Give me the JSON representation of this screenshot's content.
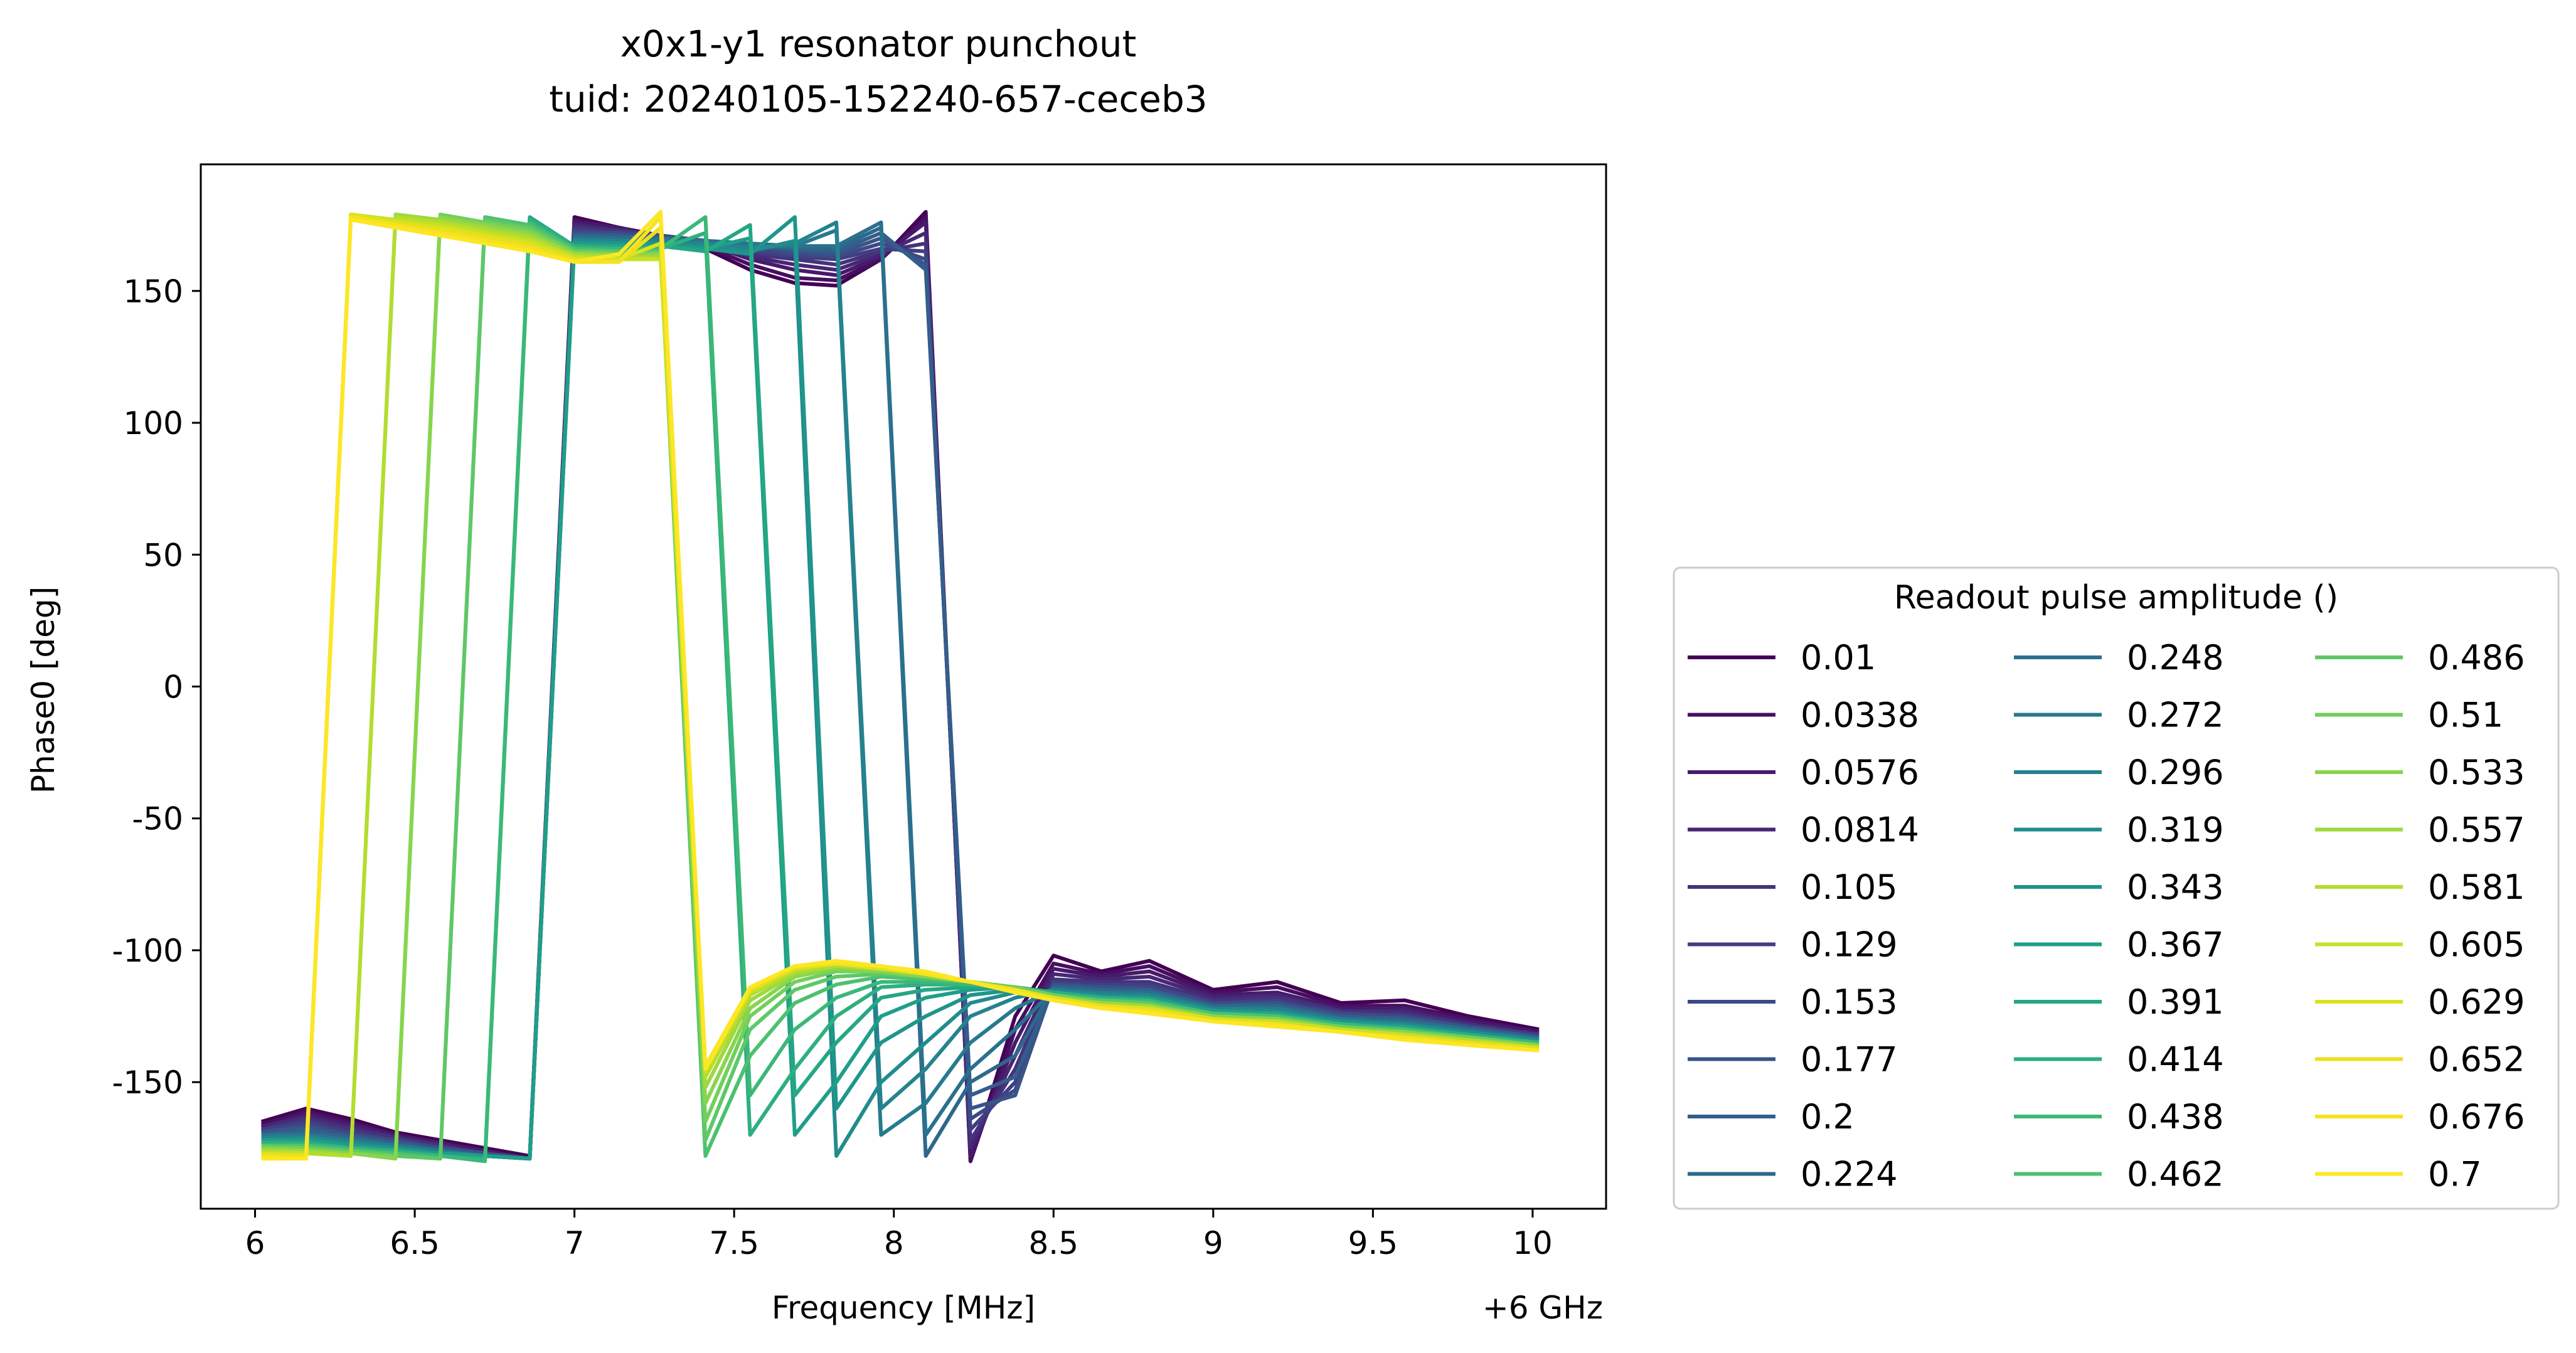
{
  "chart_data": {
    "type": "line",
    "title": "x0x1-y1 resonator punchout",
    "subtitle": "tuid: 20240105-152240-657-ceceb3",
    "xlabel": "Frequency [MHz]",
    "x_offset_label": "+6 GHz",
    "ylabel": "Phase0 [deg]",
    "xlim": [
      5.83,
      10.23
    ],
    "ylim": [
      -198,
      198
    ],
    "xticks": [
      6,
      6.5,
      7,
      7.5,
      8,
      8.5,
      9,
      9.5,
      10
    ],
    "xtick_labels": [
      "6",
      "6.5",
      "7",
      "7.5",
      "8",
      "8.5",
      "9",
      "9.5",
      "10"
    ],
    "yticks": [
      150,
      100,
      50,
      0,
      -50,
      -100,
      -150
    ],
    "ytick_labels": [
      "150",
      "100",
      "50",
      "0",
      "-50",
      "-100",
      "-150"
    ],
    "grid": false,
    "legend": {
      "title": "Readout pulse amplitude ()",
      "placement": "lower-right-outside",
      "columns": 3
    },
    "x": [
      6.02,
      6.16,
      6.3,
      6.44,
      6.58,
      6.72,
      6.86,
      7.0,
      7.14,
      7.27,
      7.41,
      7.55,
      7.69,
      7.82,
      7.96,
      8.1,
      8.24,
      8.38,
      8.5,
      8.65,
      8.8,
      9.0,
      9.2,
      9.4,
      9.6,
      9.8,
      10.02
    ],
    "series": [
      {
        "name": "0.01",
        "color": "#440154",
        "values": [
          -165,
          -160,
          -164,
          -169,
          -172,
          -175,
          -178,
          178,
          174,
          170,
          166,
          158,
          153,
          152,
          162,
          180,
          -180,
          -125,
          -102,
          -108,
          -104,
          -115,
          -112,
          -120,
          -119,
          -125,
          -130
        ]
      },
      {
        "name": "0.0338",
        "color": "#470e61",
        "values": [
          -166,
          -161,
          -165,
          -170,
          -173,
          -176,
          -179,
          177,
          174,
          171,
          167,
          160,
          155,
          154,
          162,
          178,
          -180,
          -130,
          -105,
          -109,
          -106,
          -116,
          -114,
          -121,
          -121,
          -126,
          -131
        ]
      },
      {
        "name": "0.0576",
        "color": "#471a6c",
        "values": [
          -167,
          -162,
          -166,
          -170,
          -173,
          -176,
          -179,
          176,
          174,
          171,
          168,
          162,
          158,
          156,
          163,
          176,
          -178,
          -135,
          -107,
          -110,
          -108,
          -117,
          -116,
          -122,
          -122,
          -127,
          -131
        ]
      },
      {
        "name": "0.0814",
        "color": "#472775",
        "values": [
          -167,
          -163,
          -167,
          -171,
          -174,
          -177,
          -179,
          175,
          173,
          171,
          168,
          163,
          160,
          158,
          164,
          172,
          -175,
          -140,
          -109,
          -111,
          -110,
          -118,
          -117,
          -123,
          -123,
          -128,
          -132
        ]
      },
      {
        "name": "0.105",
        "color": "#44337c",
        "values": [
          -168,
          -164,
          -168,
          -171,
          -174,
          -177,
          -179,
          174,
          173,
          171,
          169,
          164,
          162,
          160,
          165,
          168,
          -172,
          -145,
          -111,
          -112,
          -112,
          -119,
          -118,
          -123,
          -124,
          -128,
          -132
        ]
      },
      {
        "name": "0.129",
        "color": "#413e82",
        "values": [
          -168,
          -165,
          -169,
          -172,
          -175,
          -177,
          -179,
          173,
          172,
          171,
          169,
          165,
          163,
          162,
          166,
          165,
          -168,
          -150,
          -112,
          -113,
          -113,
          -120,
          -119,
          -124,
          -125,
          -129,
          -132
        ]
      },
      {
        "name": "0.153",
        "color": "#3d4986",
        "values": [
          -169,
          -166,
          -170,
          -172,
          -175,
          -177,
          -179,
          172,
          172,
          171,
          169,
          166,
          164,
          163,
          168,
          162,
          -164,
          -153,
          -113,
          -114,
          -114,
          -120,
          -120,
          -124,
          -125,
          -129,
          -133
        ]
      },
      {
        "name": "0.177",
        "color": "#385489",
        "values": [
          -169,
          -167,
          -170,
          -173,
          -175,
          -177,
          -179,
          172,
          171,
          170,
          169,
          167,
          165,
          164,
          170,
          160,
          -160,
          -155,
          -113,
          -114,
          -115,
          -121,
          -120,
          -125,
          -126,
          -129,
          -133
        ]
      },
      {
        "name": "0.2",
        "color": "#335e8b",
        "values": [
          -170,
          -168,
          -171,
          -173,
          -176,
          -178,
          -179,
          171,
          171,
          170,
          169,
          167,
          166,
          165,
          172,
          158,
          -155,
          -148,
          -114,
          -115,
          -115,
          -121,
          -121,
          -125,
          -126,
          -130,
          -133
        ]
      },
      {
        "name": "0.224",
        "color": "#2e678c",
        "values": [
          -170,
          -169,
          -171,
          -174,
          -176,
          -178,
          -179,
          171,
          170,
          170,
          169,
          168,
          166,
          166,
          174,
          -178,
          -150,
          -140,
          -114,
          -115,
          -116,
          -121,
          -121,
          -126,
          -127,
          -130,
          -133
        ]
      },
      {
        "name": "0.248",
        "color": "#2a718d",
        "values": [
          -170,
          -170,
          -172,
          -174,
          -176,
          -178,
          -179,
          170,
          170,
          170,
          169,
          168,
          167,
          167,
          176,
          -170,
          -145,
          -130,
          -115,
          -116,
          -116,
          -122,
          -122,
          -126,
          -127,
          -130,
          -134
        ]
      },
      {
        "name": "0.272",
        "color": "#277a8e",
        "values": [
          -171,
          -170,
          -172,
          -174,
          -176,
          -178,
          -179,
          170,
          169,
          169,
          168,
          167,
          167,
          173,
          -170,
          -158,
          -135,
          -122,
          -115,
          -116,
          -117,
          -122,
          -122,
          -126,
          -128,
          -131,
          -134
        ]
      },
      {
        "name": "0.296",
        "color": "#24838e",
        "values": [
          -171,
          -171,
          -173,
          -175,
          -177,
          -178,
          -179,
          169,
          169,
          169,
          168,
          166,
          168,
          176,
          -160,
          -145,
          -125,
          -118,
          -115,
          -117,
          -117,
          -122,
          -123,
          -127,
          -128,
          -131,
          -134
        ]
      },
      {
        "name": "0.319",
        "color": "#218c8d",
        "values": [
          -172,
          -171,
          -173,
          -175,
          -177,
          -178,
          -179,
          169,
          168,
          168,
          167,
          165,
          169,
          -178,
          -150,
          -135,
          -120,
          -116,
          -116,
          -117,
          -118,
          -123,
          -123,
          -127,
          -128,
          -131,
          -134
        ]
      },
      {
        "name": "0.343",
        "color": "#1f958b",
        "values": [
          -172,
          -172,
          -174,
          -175,
          -177,
          -178,
          -179,
          168,
          168,
          168,
          166,
          164,
          178,
          -160,
          -135,
          -125,
          -117,
          -115,
          -116,
          -118,
          -118,
          -123,
          -124,
          -127,
          -129,
          -132,
          -135
        ]
      },
      {
        "name": "0.367",
        "color": "#1f9e88",
        "values": [
          -172,
          -172,
          -174,
          -176,
          -177,
          -178,
          -179,
          168,
          167,
          167,
          166,
          170,
          -170,
          -150,
          -125,
          -118,
          -115,
          -114,
          -116,
          -118,
          -118,
          -123,
          -124,
          -128,
          -129,
          -132,
          -135
        ]
      },
      {
        "name": "0.391",
        "color": "#24a784",
        "values": [
          -173,
          -173,
          -175,
          -176,
          -178,
          -179,
          178,
          167,
          167,
          167,
          165,
          175,
          -155,
          -135,
          -118,
          -115,
          -114,
          -114,
          -116,
          -118,
          -119,
          -124,
          -124,
          -128,
          -129,
          -132,
          -135
        ]
      },
      {
        "name": "0.414",
        "color": "#2eaf7f",
        "values": [
          -173,
          -173,
          -175,
          -176,
          -178,
          -179,
          177,
          167,
          166,
          166,
          172,
          -170,
          -145,
          -125,
          -114,
          -113,
          -113,
          -114,
          -116,
          -118,
          -119,
          -124,
          -125,
          -128,
          -130,
          -132,
          -135
        ]
      },
      {
        "name": "0.438",
        "color": "#3bb878",
        "values": [
          -174,
          -174,
          -175,
          -177,
          -178,
          -180,
          176,
          166,
          166,
          166,
          178,
          -155,
          -130,
          -118,
          -112,
          -112,
          -113,
          -114,
          -117,
          -119,
          -119,
          -124,
          -125,
          -128,
          -130,
          -133,
          -135
        ]
      },
      {
        "name": "0.462",
        "color": "#4cc16f",
        "values": [
          -174,
          -174,
          -176,
          -177,
          -179,
          178,
          175,
          166,
          165,
          165,
          -178,
          -140,
          -120,
          -113,
          -110,
          -111,
          -112,
          -114,
          -117,
          -119,
          -120,
          -124,
          -125,
          -129,
          -130,
          -133,
          -136
        ]
      },
      {
        "name": "0.486",
        "color": "#5ec866",
        "values": [
          -174,
          -175,
          -176,
          -178,
          -179,
          177,
          174,
          165,
          165,
          165,
          -172,
          -130,
          -115,
          -110,
          -109,
          -110,
          -112,
          -114,
          -117,
          -119,
          -120,
          -125,
          -126,
          -129,
          -131,
          -133,
          -136
        ]
      },
      {
        "name": "0.51",
        "color": "#72cf5a",
        "values": [
          -175,
          -175,
          -177,
          -178,
          179,
          176,
          173,
          165,
          164,
          164,
          -165,
          -125,
          -112,
          -108,
          -108,
          -110,
          -112,
          -114,
          -117,
          -120,
          -121,
          -125,
          -126,
          -129,
          -131,
          -133,
          -136
        ]
      },
      {
        "name": "0.533",
        "color": "#88d54d",
        "values": [
          -175,
          -176,
          -177,
          -179,
          178,
          175,
          172,
          164,
          164,
          164,
          -158,
          -122,
          -110,
          -107,
          -108,
          -110,
          -112,
          -115,
          -118,
          -120,
          -121,
          -125,
          -126,
          -130,
          -131,
          -134,
          -136
        ]
      },
      {
        "name": "0.557",
        "color": "#9ed93e",
        "values": [
          -176,
          -176,
          -178,
          179,
          177,
          174,
          171,
          164,
          163,
          163,
          -152,
          -119,
          -109,
          -106,
          -107,
          -109,
          -112,
          -115,
          -118,
          -120,
          -121,
          -126,
          -127,
          -130,
          -132,
          -134,
          -137
        ]
      },
      {
        "name": "0.581",
        "color": "#b3dd2e",
        "values": [
          -176,
          -177,
          -178,
          178,
          176,
          173,
          170,
          163,
          163,
          162,
          -148,
          -117,
          -108,
          -106,
          -107,
          -109,
          -112,
          -115,
          -118,
          -121,
          -122,
          -126,
          -127,
          -130,
          -132,
          -134,
          -137
        ]
      },
      {
        "name": "0.605",
        "color": "#c8e024",
        "values": [
          -177,
          -177,
          179,
          177,
          175,
          172,
          169,
          163,
          162,
          162,
          -146,
          -116,
          -107,
          -105,
          -107,
          -109,
          -112,
          -115,
          -118,
          -121,
          -122,
          -126,
          -127,
          -130,
          -132,
          -135,
          -137
        ]
      },
      {
        "name": "0.629",
        "color": "#dbe21e",
        "values": [
          -177,
          -178,
          179,
          176,
          174,
          171,
          168,
          162,
          162,
          168,
          -145,
          -115,
          -107,
          -105,
          -107,
          -109,
          -112,
          -115,
          -118,
          -121,
          -122,
          -126,
          -128,
          -131,
          -133,
          -135,
          -137
        ]
      },
      {
        "name": "0.652",
        "color": "#ecdf1e",
        "values": [
          -178,
          -178,
          178,
          175,
          173,
          170,
          167,
          162,
          161,
          174,
          -144,
          -115,
          -106,
          -105,
          -106,
          -109,
          -112,
          -115,
          -119,
          -121,
          -123,
          -127,
          -128,
          -131,
          -133,
          -135,
          -138
        ]
      },
      {
        "name": "0.676",
        "color": "#f6e21f",
        "values": [
          -178,
          -179,
          178,
          175,
          172,
          169,
          166,
          161,
          161,
          178,
          -144,
          -114,
          -106,
          -105,
          -106,
          -109,
          -112,
          -115,
          -119,
          -122,
          -123,
          -127,
          -128,
          -131,
          -133,
          -136,
          -138
        ]
      },
      {
        "name": "0.7",
        "color": "#fde725",
        "values": [
          -179,
          -179,
          177,
          174,
          171,
          168,
          165,
          161,
          164,
          180,
          -145,
          -114,
          -106,
          -104,
          -106,
          -108,
          -112,
          -116,
          -119,
          -122,
          -124,
          -127,
          -129,
          -131,
          -134,
          -136,
          -138
        ]
      }
    ]
  }
}
